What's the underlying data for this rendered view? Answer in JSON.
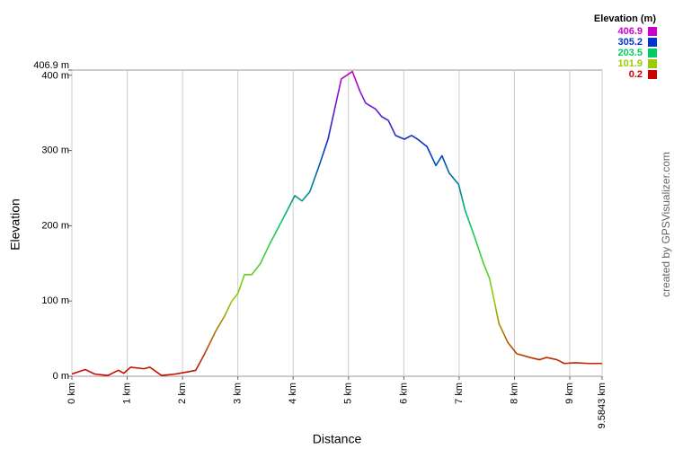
{
  "chart_data": {
    "type": "line",
    "xlabel": "Distance",
    "ylabel": "Elevation",
    "credit": "created by GPSVisualizer.com",
    "xlim": [
      0,
      9.5843
    ],
    "ylim": [
      0,
      406.9
    ],
    "xticks": [
      {
        "value": 0,
        "label": "0 km"
      },
      {
        "value": 1,
        "label": "1 km"
      },
      {
        "value": 2,
        "label": "2 km"
      },
      {
        "value": 3,
        "label": "3 km"
      },
      {
        "value": 4,
        "label": "4 km"
      },
      {
        "value": 5,
        "label": "5 km"
      },
      {
        "value": 6,
        "label": "6 km"
      },
      {
        "value": 7,
        "label": "7 km"
      },
      {
        "value": 8,
        "label": "8 km"
      },
      {
        "value": 9,
        "label": "9 km"
      },
      {
        "value": 9.5843,
        "label": "9.5843 km"
      }
    ],
    "yticks": [
      {
        "value": 0,
        "label": "0 m"
      },
      {
        "value": 100,
        "label": "100 m"
      },
      {
        "value": 200,
        "label": "200 m"
      },
      {
        "value": 300,
        "label": "300 m"
      },
      {
        "value": 400,
        "label": "400 m"
      },
      {
        "value": 406.9,
        "label": "406.9 m"
      }
    ],
    "grid": true,
    "legend": {
      "title": "Elevation (m)",
      "entries": [
        {
          "value": 406.9,
          "color": "#cc00cc"
        },
        {
          "value": 305.2,
          "color": "#0033cc"
        },
        {
          "value": 203.5,
          "color": "#00cc66"
        },
        {
          "value": 101.9,
          "color": "#99cc00"
        },
        {
          "value": 0.2,
          "color": "#cc0000"
        }
      ]
    },
    "x": [
      0,
      0.24,
      0.41,
      0.65,
      0.84,
      0.94,
      1.06,
      1.3,
      1.41,
      1.62,
      1.87,
      2.11,
      2.24,
      2.4,
      2.6,
      2.76,
      2.89,
      3.0,
      3.12,
      3.25,
      3.41,
      3.57,
      3.82,
      4.03,
      4.16,
      4.3,
      4.47,
      4.63,
      4.87,
      5.07,
      5.2,
      5.31,
      5.49,
      5.6,
      5.72,
      5.85,
      6.01,
      6.14,
      6.25,
      6.42,
      6.58,
      6.69,
      6.82,
      6.99,
      7.11,
      7.28,
      7.44,
      7.55,
      7.72,
      7.88,
      8.04,
      8.28,
      8.45,
      8.58,
      8.77,
      8.9,
      9.1,
      9.34,
      9.5843
    ],
    "values": [
      3,
      9,
      3,
      1,
      8,
      4,
      12,
      10,
      12,
      1,
      3,
      6,
      8,
      30,
      60,
      80,
      100,
      110,
      135,
      135,
      150,
      175,
      210,
      240,
      233,
      245,
      280,
      315,
      395,
      405,
      380,
      363,
      355,
      345,
      340,
      320,
      315,
      320,
      315,
      305,
      280,
      293,
      270,
      255,
      220,
      185,
      150,
      130,
      70,
      45,
      30,
      25,
      22,
      25,
      22,
      17,
      18,
      17,
      17
    ]
  }
}
